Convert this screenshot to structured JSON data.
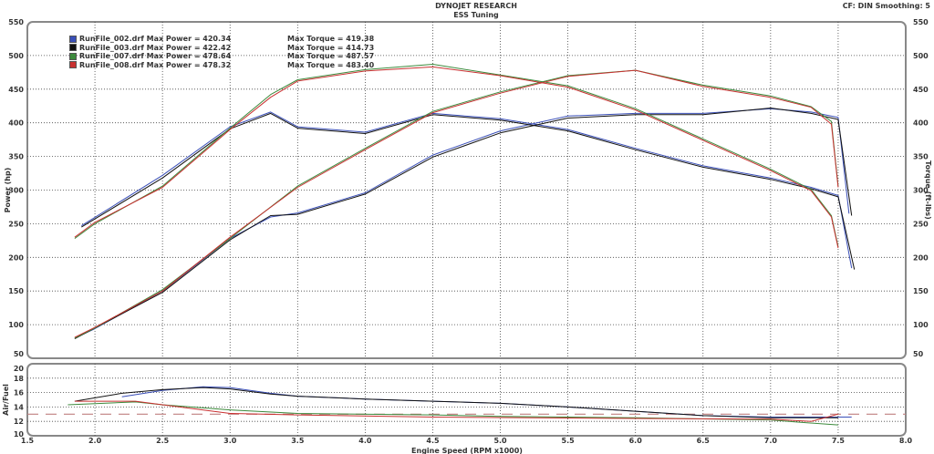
{
  "header": {
    "title": "DYNOJET RESEARCH",
    "subtitle": "ESS Tuning",
    "settings": "CF: DIN  Smoothing: 5"
  },
  "chart_data": [
    {
      "type": "line",
      "ylabel": "Power (hp)",
      "y2label": "Torque (ft-lbs)",
      "xlabel": "Engine Speed (RPM x1000)",
      "xlim": [
        1.5,
        8.0
      ],
      "ylim": [
        50,
        550
      ],
      "y2lim": [
        50,
        550
      ],
      "grid": true,
      "legend": "top-left",
      "xticks": [
        "1.5",
        "2.0",
        "2.5",
        "3.0",
        "3.5",
        "4.0",
        "4.5",
        "5.0",
        "5.5",
        "6.0",
        "6.5",
        "7.0",
        "7.5",
        "8.0"
      ],
      "yticks": [
        "50",
        "100",
        "150",
        "200",
        "250",
        "300",
        "350",
        "400",
        "450",
        "500",
        "550"
      ],
      "series": [
        {
          "name": "RunFile_002.drf Max Power = 420.34",
          "torque_label": "Max Torque = 419.38",
          "color": "#3a4fb8",
          "power": [
            [
              1.85,
              80
            ],
            [
              2.0,
              94
            ],
            [
              2.5,
              150
            ],
            [
              3.0,
              228
            ],
            [
              3.3,
              260
            ],
            [
              3.5,
              266
            ],
            [
              4.0,
              296
            ],
            [
              4.5,
              352
            ],
            [
              5.0,
              388
            ],
            [
              5.5,
              410
            ],
            [
              6.0,
              414
            ],
            [
              6.5,
              414
            ],
            [
              7.0,
              421
            ],
            [
              7.3,
              416
            ],
            [
              7.5,
              408
            ],
            [
              7.58,
              265
            ]
          ],
          "torque": [
            [
              1.9,
              247
            ],
            [
              2.5,
              322
            ],
            [
              3.0,
              394
            ],
            [
              3.3,
              416
            ],
            [
              3.5,
              394
            ],
            [
              4.0,
              386
            ],
            [
              4.5,
              414
            ],
            [
              5.0,
              406
            ],
            [
              5.5,
              390
            ],
            [
              6.0,
              362
            ],
            [
              6.5,
              336
            ],
            [
              7.0,
              318
            ],
            [
              7.3,
              304
            ],
            [
              7.5,
              292
            ],
            [
              7.6,
              184
            ]
          ]
        },
        {
          "name": "RunFile_003.drf Max Power = 422.42",
          "torque_label": "Max Torque = 414.73",
          "color": "#111111",
          "power": [
            [
              1.85,
              79
            ],
            [
              2.0,
              95
            ],
            [
              2.5,
              148
            ],
            [
              3.0,
              226
            ],
            [
              3.3,
              262
            ],
            [
              3.5,
              264
            ],
            [
              4.0,
              294
            ],
            [
              4.5,
              349
            ],
            [
              5.0,
              385
            ],
            [
              5.5,
              407
            ],
            [
              6.0,
              412
            ],
            [
              6.5,
              412
            ],
            [
              7.0,
              422
            ],
            [
              7.3,
              414
            ],
            [
              7.5,
              405
            ],
            [
              7.6,
              262
            ]
          ],
          "torque": [
            [
              1.9,
              245
            ],
            [
              2.5,
              318
            ],
            [
              3.0,
              391
            ],
            [
              3.3,
              414
            ],
            [
              3.5,
              392
            ],
            [
              4.0,
              384
            ],
            [
              4.5,
              412
            ],
            [
              5.0,
              404
            ],
            [
              5.5,
              388
            ],
            [
              6.0,
              360
            ],
            [
              6.5,
              334
            ],
            [
              7.0,
              316
            ],
            [
              7.3,
              302
            ],
            [
              7.5,
              290
            ],
            [
              7.62,
              182
            ]
          ]
        },
        {
          "name": "RunFile_007.drf Max Power = 478.64",
          "torque_label": "Max Torque = 487.57",
          "color": "#3c8a3c",
          "power": [
            [
              1.85,
              80
            ],
            [
              2.0,
              95
            ],
            [
              2.5,
              152
            ],
            [
              3.0,
              228
            ],
            [
              3.5,
              306
            ],
            [
              4.0,
              362
            ],
            [
              4.5,
              417
            ],
            [
              5.0,
              446
            ],
            [
              5.5,
              470
            ],
            [
              6.0,
              478
            ],
            [
              6.5,
              456
            ],
            [
              7.0,
              440
            ],
            [
              7.3,
              424
            ],
            [
              7.45,
              402
            ],
            [
              7.5,
              306
            ]
          ],
          "torque": [
            [
              1.85,
              228
            ],
            [
              2.0,
              250
            ],
            [
              2.5,
              306
            ],
            [
              3.0,
              392
            ],
            [
              3.3,
              442
            ],
            [
              3.5,
              464
            ],
            [
              4.0,
              479
            ],
            [
              4.5,
              487
            ],
            [
              5.0,
              471
            ],
            [
              5.5,
              455
            ],
            [
              6.0,
              421
            ],
            [
              6.5,
              376
            ],
            [
              7.0,
              331
            ],
            [
              7.3,
              301
            ],
            [
              7.45,
              262
            ],
            [
              7.5,
              216
            ]
          ]
        },
        {
          "name": "RunFile_008.drf Max Power = 478.32",
          "torque_label": "Max Torque = 483.40",
          "color": "#c83030",
          "power": [
            [
              1.85,
              81
            ],
            [
              2.0,
              96
            ],
            [
              2.5,
              150
            ],
            [
              3.0,
              230
            ],
            [
              3.5,
              304
            ],
            [
              4.0,
              360
            ],
            [
              4.5,
              415
            ],
            [
              5.0,
              444
            ],
            [
              5.5,
              469
            ],
            [
              6.0,
              478
            ],
            [
              6.5,
              454
            ],
            [
              7.0,
              438
            ],
            [
              7.3,
              423
            ],
            [
              7.45,
              398
            ],
            [
              7.5,
              304
            ]
          ],
          "torque": [
            [
              1.85,
              230
            ],
            [
              2.0,
              252
            ],
            [
              2.5,
              304
            ],
            [
              3.0,
              390
            ],
            [
              3.3,
              438
            ],
            [
              3.5,
              462
            ],
            [
              4.0,
              477
            ],
            [
              4.5,
              483
            ],
            [
              5.0,
              470
            ],
            [
              5.5,
              453
            ],
            [
              6.0,
              419
            ],
            [
              6.5,
              374
            ],
            [
              7.0,
              329
            ],
            [
              7.3,
              299
            ],
            [
              7.45,
              260
            ],
            [
              7.5,
              214
            ]
          ]
        }
      ]
    },
    {
      "type": "line",
      "ylabel": "Air/Fuel",
      "xlim": [
        1.5,
        8.0
      ],
      "ylim": [
        10,
        20
      ],
      "yticks": [
        "10",
        "12",
        "14",
        "16",
        "18",
        "20"
      ],
      "reference": 13.0,
      "reference_color": "#c08080",
      "series": [
        {
          "color": "#3a4fb8",
          "afr": [
            [
              2.2,
              15.4
            ],
            [
              2.5,
              16.3
            ],
            [
              2.8,
              16.8
            ],
            [
              3.0,
              16.7
            ],
            [
              3.3,
              15.9
            ],
            [
              3.5,
              15.5
            ],
            [
              4.0,
              15.1
            ],
            [
              4.5,
              14.8
            ],
            [
              5.0,
              14.5
            ],
            [
              5.5,
              14.0
            ],
            [
              6.0,
              13.4
            ],
            [
              6.5,
              12.8
            ],
            [
              7.0,
              12.6
            ],
            [
              7.5,
              12.6
            ],
            [
              7.6,
              12.6
            ]
          ]
        },
        {
          "color": "#111111",
          "afr": [
            [
              1.85,
              14.8
            ],
            [
              2.2,
              15.9
            ],
            [
              2.5,
              16.4
            ],
            [
              2.8,
              16.7
            ],
            [
              3.0,
              16.5
            ],
            [
              3.3,
              15.8
            ],
            [
              3.5,
              15.5
            ],
            [
              4.0,
              15.1
            ],
            [
              4.5,
              14.8
            ],
            [
              5.0,
              14.5
            ],
            [
              5.5,
              14.0
            ],
            [
              6.0,
              13.4
            ],
            [
              6.5,
              12.8
            ],
            [
              7.0,
              12.5
            ],
            [
              7.5,
              12.5
            ]
          ]
        },
        {
          "color": "#3c8a3c",
          "afr": [
            [
              1.8,
              14.3
            ],
            [
              2.3,
              14.7
            ],
            [
              2.5,
              14.3
            ],
            [
              3.0,
              13.6
            ],
            [
              3.5,
              13.1
            ],
            [
              4.5,
              12.9
            ],
            [
              5.0,
              12.7
            ],
            [
              6.0,
              12.5
            ],
            [
              7.0,
              12.2
            ],
            [
              7.2,
              11.9
            ],
            [
              7.5,
              11.5
            ]
          ]
        },
        {
          "color": "#c83030",
          "afr": [
            [
              1.85,
              14.8
            ],
            [
              2.3,
              14.8
            ],
            [
              2.5,
              14.3
            ],
            [
              3.0,
              13.1
            ],
            [
              3.5,
              12.9
            ],
            [
              4.5,
              12.6
            ],
            [
              6.0,
              12.4
            ],
            [
              7.0,
              12.3
            ],
            [
              7.3,
              12.0
            ],
            [
              7.5,
              13.0
            ]
          ]
        }
      ]
    }
  ]
}
